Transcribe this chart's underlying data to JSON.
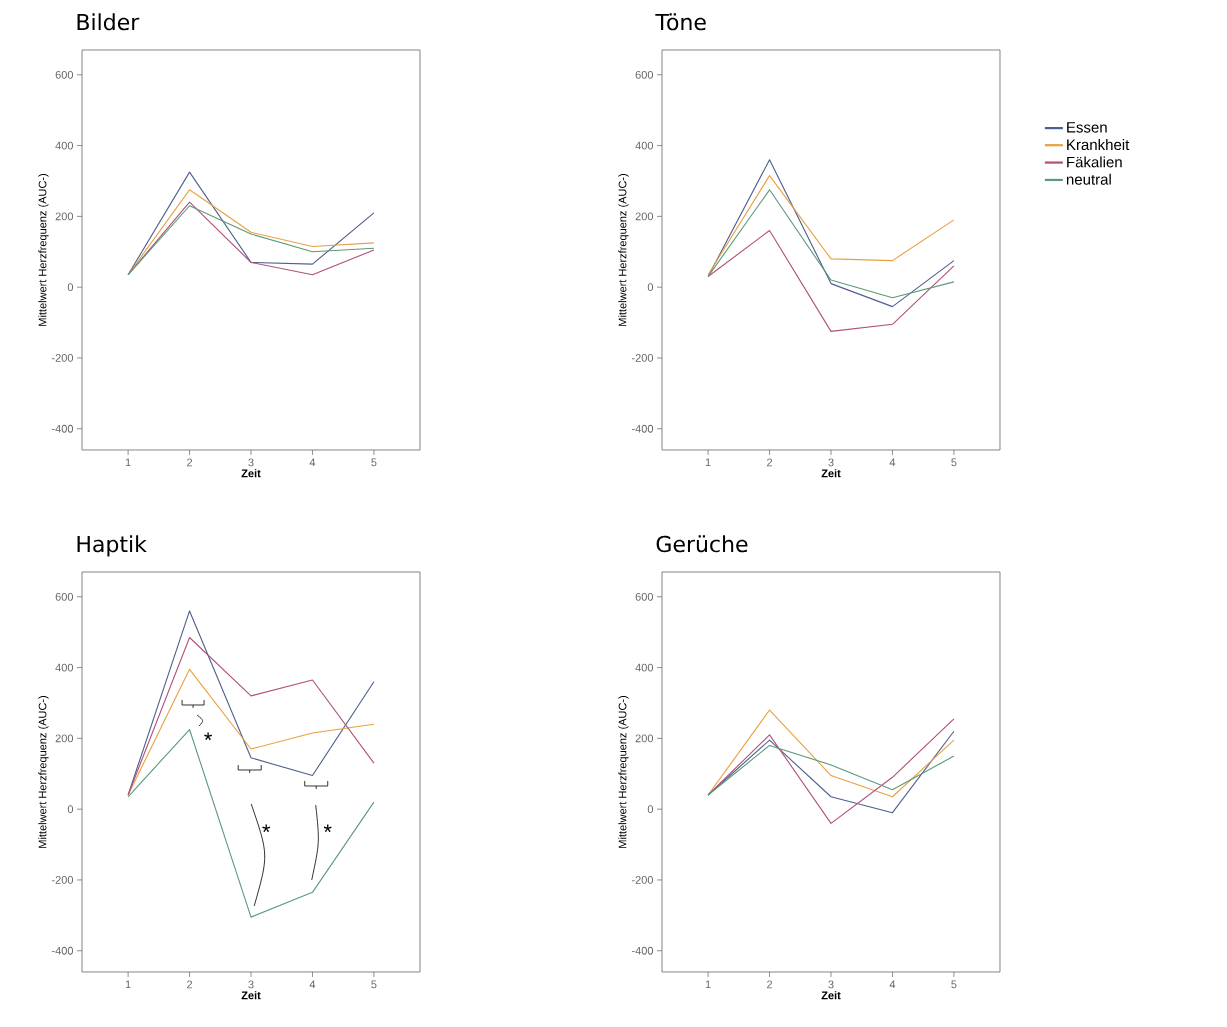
{
  "chart_data": [
    {
      "type": "line",
      "title": "Bilder",
      "xlabel": "Zeit",
      "ylabel": "Mittelwert Herzfrequenz (AUC-)",
      "x": [
        1,
        2,
        3,
        4,
        5
      ],
      "xlim": [
        0.25,
        5.75
      ],
      "xticks": [
        1,
        2,
        3,
        4,
        5
      ],
      "ylim": [
        -460,
        670
      ],
      "yticks": [
        -400,
        -200,
        0,
        200,
        400,
        600
      ],
      "grid": false,
      "legend": false,
      "marker": "none",
      "line_style": "solid",
      "series": [
        {
          "color": "#4d5f8e",
          "values": [
            35,
            325,
            70,
            65,
            210
          ]
        },
        {
          "color": "#e9a040",
          "values": [
            35,
            275,
            155,
            115,
            125
          ]
        },
        {
          "color": "#b0507a",
          "values": [
            35,
            240,
            70,
            35,
            105
          ]
        },
        {
          "color": "#5a9a78",
          "values": [
            35,
            230,
            150,
            100,
            110
          ]
        }
      ]
    },
    {
      "type": "line",
      "title": "Töne",
      "xlabel": "Zeit",
      "ylabel": "Mittelwert Herzfrequenz (AUC-)",
      "x": [
        1,
        2,
        3,
        4,
        5
      ],
      "xlim": [
        0.25,
        5.75
      ],
      "xticks": [
        1,
        2,
        3,
        4,
        5
      ],
      "ylim": [
        -460,
        670
      ],
      "yticks": [
        -400,
        -200,
        0,
        200,
        400,
        600
      ],
      "grid": false,
      "legend": "right",
      "marker": "none",
      "line_style": "solid",
      "series": [
        {
          "name": "Essen",
          "color": "#4d5f8e",
          "values": [
            30,
            360,
            10,
            -55,
            75
          ]
        },
        {
          "name": "Krankheit",
          "color": "#e9a040",
          "values": [
            35,
            315,
            80,
            75,
            190
          ]
        },
        {
          "name": "Fäkalien",
          "color": "#b0507a",
          "values": [
            30,
            160,
            -125,
            -105,
            60
          ]
        },
        {
          "name": "neutral",
          "color": "#5a9a78",
          "values": [
            30,
            275,
            20,
            -30,
            15
          ]
        }
      ]
    },
    {
      "type": "line",
      "title": "Haptik",
      "xlabel": "Zeit",
      "ylabel": "Mittelwert Herzfrequenz (AUC-)",
      "x": [
        1,
        2,
        3,
        4,
        5
      ],
      "xlim": [
        0.25,
        5.75
      ],
      "xticks": [
        1,
        2,
        3,
        4,
        5
      ],
      "ylim": [
        -460,
        670
      ],
      "yticks": [
        -400,
        -200,
        0,
        200,
        400,
        600
      ],
      "grid": false,
      "legend": false,
      "marker": "none",
      "line_style": "solid",
      "series": [
        {
          "color": "#4d5f8e",
          "values": [
            40,
            560,
            145,
            95,
            360
          ]
        },
        {
          "color": "#e9a040",
          "values": [
            40,
            395,
            170,
            215,
            240
          ]
        },
        {
          "color": "#b0507a",
          "values": [
            40,
            485,
            320,
            365,
            130
          ]
        },
        {
          "color": "#5a9a78",
          "values": [
            35,
            225,
            -305,
            -235,
            20
          ]
        }
      ],
      "annotations": [
        "*",
        "*",
        "*"
      ]
    },
    {
      "type": "line",
      "title": "Gerüche",
      "xlabel": "Zeit",
      "ylabel": "Mittelwert Herzfrequenz (AUC-)",
      "x": [
        1,
        2,
        3,
        4,
        5
      ],
      "xlim": [
        0.25,
        5.75
      ],
      "xticks": [
        1,
        2,
        3,
        4,
        5
      ],
      "ylim": [
        -460,
        670
      ],
      "yticks": [
        -400,
        -200,
        0,
        200,
        400,
        600
      ],
      "grid": false,
      "legend": false,
      "marker": "none",
      "line_style": "solid",
      "series": [
        {
          "color": "#4d5f8e",
          "values": [
            40,
            195,
            35,
            -10,
            220
          ]
        },
        {
          "color": "#e9a040",
          "values": [
            40,
            280,
            95,
            35,
            195
          ]
        },
        {
          "color": "#b0507a",
          "values": [
            40,
            210,
            -40,
            90,
            255
          ]
        },
        {
          "color": "#5a9a78",
          "values": [
            40,
            180,
            125,
            55,
            150
          ]
        }
      ]
    }
  ]
}
